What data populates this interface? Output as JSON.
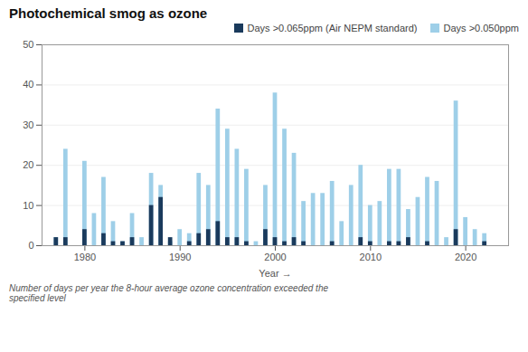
{
  "chart_data": {
    "type": "bar",
    "title": "Photochemical smog as ozone",
    "xlabel": "Year",
    "caption": "Number of days per year the 8-hour average ozone concentration exceeded the\nspecified level",
    "x": [
      1977,
      1978,
      1979,
      1980,
      1981,
      1982,
      1983,
      1984,
      1985,
      1986,
      1987,
      1988,
      1989,
      1990,
      1991,
      1992,
      1993,
      1994,
      1995,
      1996,
      1997,
      1998,
      1999,
      2000,
      2001,
      2002,
      2003,
      2004,
      2005,
      2006,
      2007,
      2008,
      2009,
      2010,
      2011,
      2012,
      2013,
      2014,
      2015,
      2016,
      2017,
      2018,
      2019,
      2020,
      2021,
      2022,
      2023
    ],
    "series": [
      {
        "name": "Days >0.065ppm (Air NEPM standard)",
        "color": "#1a3a5c",
        "values": [
          2,
          2,
          0,
          4,
          0,
          3,
          1,
          1,
          2,
          0,
          10,
          12,
          2,
          0,
          1,
          3,
          4,
          6,
          2,
          2,
          1,
          0,
          4,
          2,
          1,
          2,
          1,
          0,
          0,
          1,
          0,
          0,
          2,
          1,
          0,
          1,
          1,
          2,
          0,
          1,
          0,
          0,
          4,
          0,
          0,
          1,
          0
        ]
      },
      {
        "name": "Days >0.050ppm",
        "color": "#9ecfe8",
        "values": [
          2,
          24,
          0,
          21,
          8,
          17,
          6,
          1,
          8,
          2,
          18,
          15,
          1,
          4,
          3,
          18,
          15,
          34,
          29,
          24,
          19,
          1,
          15,
          38,
          29,
          23,
          11,
          13,
          13,
          16,
          6,
          15,
          20,
          10,
          11,
          19,
          19,
          9,
          12,
          17,
          16,
          2,
          36,
          7,
          4,
          3,
          0
        ]
      }
    ],
    "xlim": [
      1975.5,
      2024.5
    ],
    "xticks": [
      1980,
      1990,
      2000,
      2010,
      2020
    ],
    "ylim": [
      0,
      50
    ],
    "yticks": [
      0,
      10,
      20,
      30,
      40,
      50
    ],
    "grid": true,
    "legend": "upper right"
  }
}
